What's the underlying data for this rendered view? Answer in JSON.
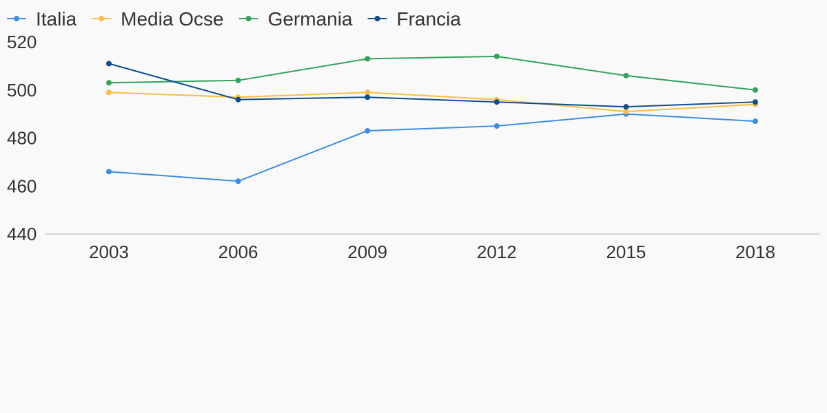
{
  "chart_data": {
    "type": "line",
    "title": "",
    "xlabel": "",
    "ylabel": "",
    "categories": [
      "2003",
      "2006",
      "2009",
      "2012",
      "2015",
      "2018"
    ],
    "ylim": [
      440,
      520
    ],
    "yticks": [
      520,
      500,
      480,
      460,
      440
    ],
    "grid": false,
    "legend_position": "top-left",
    "series": [
      {
        "name": "Italia",
        "color": "#3b8de0",
        "values": [
          466,
          462,
          483,
          485,
          490,
          487
        ]
      },
      {
        "name": "Media Ocse",
        "color": "#f9bd45",
        "values": [
          499,
          497,
          499,
          496,
          491,
          494
        ]
      },
      {
        "name": "Germania",
        "color": "#34a35a",
        "values": [
          503,
          504,
          513,
          514,
          506,
          500
        ]
      },
      {
        "name": "Francia",
        "color": "#0d4e8c",
        "values": [
          511,
          496,
          497,
          495,
          493,
          495
        ]
      }
    ]
  }
}
